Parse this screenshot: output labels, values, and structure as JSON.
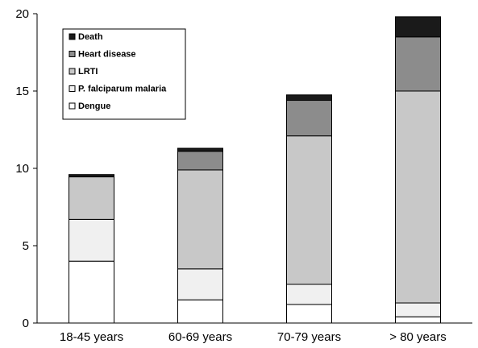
{
  "chart_data": {
    "type": "bar",
    "stacked": true,
    "categories": [
      "18-45 years",
      "60-69 years",
      "70-79 years",
      "> 80 years"
    ],
    "series": [
      {
        "name": "Dengue",
        "values": [
          4.0,
          1.5,
          1.2,
          0.4
        ],
        "color": "#ffffff"
      },
      {
        "name": "P. falciparum malaria",
        "values": [
          2.7,
          2.0,
          1.3,
          0.9
        ],
        "color": "#f0f0f0"
      },
      {
        "name": "LRTI",
        "values": [
          2.75,
          6.4,
          9.6,
          13.7
        ],
        "color": "#c8c8c8"
      },
      {
        "name": "Heart disease",
        "values": [
          0.0,
          1.2,
          2.3,
          3.5
        ],
        "color": "#8c8c8c"
      },
      {
        "name": "Death",
        "values": [
          0.15,
          0.2,
          0.35,
          1.3
        ],
        "color": "#1a1a1a"
      }
    ],
    "legend_order": [
      "Death",
      "Heart disease",
      "LRTI",
      "P. falciparum malaria",
      "Dengue"
    ],
    "yticks": [
      0,
      5,
      10,
      15,
      20
    ],
    "ylim": [
      0,
      20
    ],
    "title": "",
    "xlabel": "",
    "ylabel": "",
    "grid": false,
    "legend_position": "top-left"
  }
}
